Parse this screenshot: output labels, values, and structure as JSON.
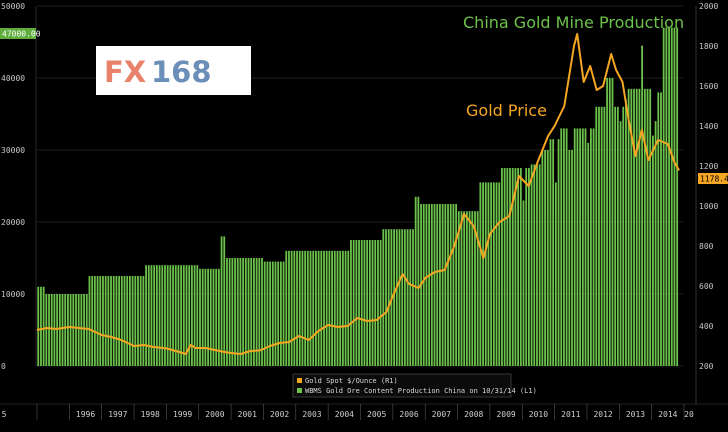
{
  "logo": {
    "text_fx": "FX",
    "text_num": "168"
  },
  "colors": {
    "bars": "#6cc24a",
    "bar_edge": "#8ee06a",
    "line": "#f5a623",
    "text": "#cfcfcf",
    "grid": "#1e1e1e"
  },
  "chart_data": {
    "type": "bar",
    "annotations": [
      {
        "text": "China Gold Mine Production",
        "color": "#6cc24a"
      },
      {
        "text": "Gold Price",
        "color": "#f5a623"
      }
    ],
    "left_axis": {
      "ticks": [
        0,
        10000,
        20000,
        30000,
        40000,
        50000
      ],
      "range": [
        0,
        50000
      ],
      "tag": "47000.00"
    },
    "right_axis": {
      "ticks": [
        200,
        400,
        600,
        800,
        1000,
        1200,
        1400,
        1600,
        1800,
        2000
      ],
      "range": [
        200,
        2000
      ],
      "tag": "1178.41"
    },
    "x_labels": [
      "5",
      "1996",
      "1997",
      "1998",
      "1999",
      "2000",
      "2001",
      "2002",
      "2003",
      "2004",
      "2005",
      "2006",
      "2007",
      "2008",
      "2009",
      "2010",
      "2011",
      "2012",
      "2013",
      "2014",
      "20"
    ],
    "x_range": [
      1995.0,
      2015.0
    ],
    "legend": [
      {
        "text": "Gold Spot $/Ounce (R1)",
        "color": "#f5a623"
      },
      {
        "text": "WBMS Gold Ore Content Production China on 10/31/14 (L1)",
        "color": "#6cc24a"
      }
    ],
    "series": [
      {
        "name": "Gold Spot $/Ounce (R1)",
        "axis": "right",
        "points": [
          [
            1995.0,
            380
          ],
          [
            1995.3,
            390
          ],
          [
            1995.6,
            385
          ],
          [
            1996.0,
            395
          ],
          [
            1996.3,
            390
          ],
          [
            1996.6,
            385
          ],
          [
            1997.0,
            355
          ],
          [
            1997.3,
            345
          ],
          [
            1997.6,
            330
          ],
          [
            1998.0,
            300
          ],
          [
            1998.3,
            305
          ],
          [
            1998.6,
            295
          ],
          [
            1999.0,
            288
          ],
          [
            1999.4,
            270
          ],
          [
            1999.6,
            260
          ],
          [
            1999.75,
            305
          ],
          [
            1999.9,
            290
          ],
          [
            2000.2,
            290
          ],
          [
            2000.5,
            280
          ],
          [
            2000.8,
            270
          ],
          [
            2001.0,
            265
          ],
          [
            2001.3,
            260
          ],
          [
            2001.6,
            275
          ],
          [
            2001.9,
            278
          ],
          [
            2002.2,
            300
          ],
          [
            2002.5,
            315
          ],
          [
            2002.8,
            320
          ],
          [
            2003.1,
            350
          ],
          [
            2003.4,
            330
          ],
          [
            2003.7,
            375
          ],
          [
            2004.0,
            405
          ],
          [
            2004.3,
            395
          ],
          [
            2004.6,
            400
          ],
          [
            2004.9,
            440
          ],
          [
            2005.2,
            425
          ],
          [
            2005.5,
            430
          ],
          [
            2005.8,
            470
          ],
          [
            2006.0,
            550
          ],
          [
            2006.3,
            660
          ],
          [
            2006.5,
            610
          ],
          [
            2006.8,
            590
          ],
          [
            2007.0,
            640
          ],
          [
            2007.3,
            670
          ],
          [
            2007.6,
            680
          ],
          [
            2007.9,
            800
          ],
          [
            2008.2,
            960
          ],
          [
            2008.5,
            900
          ],
          [
            2008.8,
            740
          ],
          [
            2009.0,
            860
          ],
          [
            2009.3,
            920
          ],
          [
            2009.6,
            950
          ],
          [
            2009.9,
            1150
          ],
          [
            2010.2,
            1100
          ],
          [
            2010.5,
            1230
          ],
          [
            2010.8,
            1350
          ],
          [
            2011.0,
            1400
          ],
          [
            2011.3,
            1500
          ],
          [
            2011.6,
            1800
          ],
          [
            2011.7,
            1860
          ],
          [
            2011.9,
            1620
          ],
          [
            2012.1,
            1700
          ],
          [
            2012.3,
            1580
          ],
          [
            2012.5,
            1600
          ],
          [
            2012.75,
            1760
          ],
          [
            2012.9,
            1680
          ],
          [
            2013.1,
            1620
          ],
          [
            2013.3,
            1420
          ],
          [
            2013.5,
            1250
          ],
          [
            2013.7,
            1380
          ],
          [
            2013.9,
            1230
          ],
          [
            2014.2,
            1330
          ],
          [
            2014.5,
            1310
          ],
          [
            2014.7,
            1220
          ],
          [
            2014.85,
            1178
          ]
        ]
      },
      {
        "name": "WBMS Gold Ore Content Production China on 10/31/14 (L1)",
        "axis": "left",
        "monthly_by_year": {
          "1995": [
            11000,
            11000,
            11000,
            10000,
            10000,
            10000,
            10000,
            10000,
            10000,
            10000,
            10000,
            10000
          ],
          "1996": [
            10000,
            10000,
            10000,
            10000,
            10000,
            10000,
            10000,
            12500,
            12500,
            12500,
            12500,
            12500
          ],
          "1997": [
            12500,
            12500,
            12500,
            12500,
            12500,
            12500,
            12500,
            12500,
            12500,
            12500,
            12500,
            12500
          ],
          "1998": [
            12500,
            12500,
            12500,
            12500,
            14000,
            14000,
            14000,
            14000,
            14000,
            14000,
            14000,
            14000
          ],
          "1999": [
            14000,
            14000,
            14000,
            14000,
            14000,
            14000,
            14000,
            14000,
            14000,
            14000,
            14000,
            14000
          ],
          "2000": [
            13500,
            13500,
            13500,
            13500,
            13500,
            13500,
            13500,
            13500,
            18000,
            18000,
            15000,
            15000
          ],
          "2001": [
            15000,
            15000,
            15000,
            15000,
            15000,
            15000,
            15000,
            15000,
            15000,
            15000,
            15000,
            15000
          ],
          "2002": [
            14500,
            14500,
            14500,
            14500,
            14500,
            14500,
            14500,
            14500,
            16000,
            16000,
            16000,
            16000
          ],
          "2003": [
            16000,
            16000,
            16000,
            16000,
            16000,
            16000,
            16000,
            16000,
            16000,
            16000,
            16000,
            16000
          ],
          "2004": [
            16000,
            16000,
            16000,
            16000,
            16000,
            16000,
            16000,
            16000,
            17500,
            17500,
            17500,
            17500
          ],
          "2005": [
            17500,
            17500,
            17500,
            17500,
            17500,
            17500,
            17500,
            17500,
            19000,
            19000,
            19000,
            19000
          ],
          "2006": [
            19000,
            19000,
            19000,
            19000,
            19000,
            19000,
            19000,
            19000,
            23500,
            23500,
            22500,
            22500
          ],
          "2007": [
            22500,
            22500,
            22500,
            22500,
            22500,
            22500,
            22500,
            22500,
            22500,
            22500,
            22500,
            22500
          ],
          "2008": [
            21500,
            21500,
            21500,
            21500,
            21500,
            21500,
            21500,
            21500,
            25500,
            25500,
            25500,
            25500
          ],
          "2009": [
            25500,
            25500,
            25500,
            25500,
            27500,
            27500,
            27500,
            27500,
            27500,
            27500,
            27500,
            27500
          ],
          "2010": [
            23000,
            27500,
            27500,
            28000,
            28000,
            28000,
            28000,
            30000,
            30000,
            30000,
            31500,
            31500
          ],
          "2011": [
            25500,
            31500,
            33000,
            33000,
            33000,
            30000,
            30000,
            33000,
            33000,
            33000,
            33000,
            33000
          ],
          "2012": [
            31000,
            33000,
            33000,
            36000,
            36000,
            36000,
            36000,
            40000,
            40000,
            40000,
            36000,
            36000
          ],
          "2013": [
            34000,
            36000,
            37000,
            38500,
            38500,
            38500,
            38500,
            38500,
            44500,
            38500,
            38500,
            38500
          ],
          "2014": [
            32000,
            34000,
            38000,
            38000,
            47000,
            47000,
            47000,
            47000,
            47000,
            47000
          ]
        }
      }
    ]
  }
}
